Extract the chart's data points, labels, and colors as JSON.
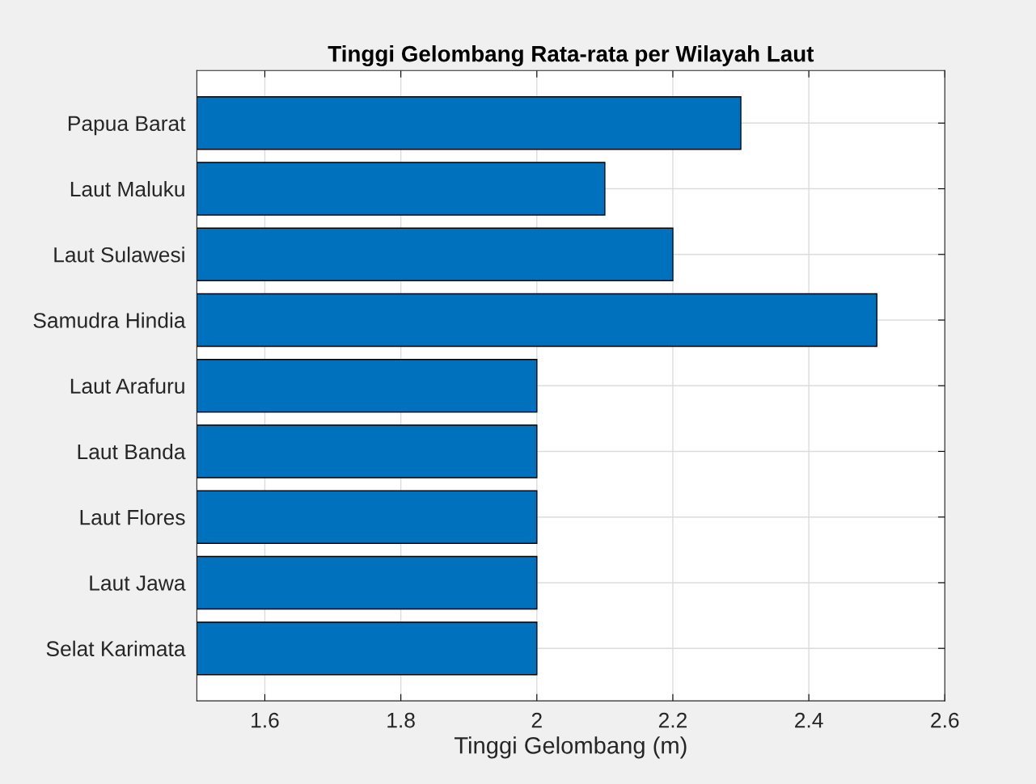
{
  "chart_data": {
    "type": "bar",
    "orientation": "horizontal",
    "title": "Tinggi Gelombang Rata-rata per Wilayah Laut",
    "xlabel": "Tinggi Gelombang (m)",
    "categories": [
      "Papua Barat",
      "Laut Maluku",
      "Laut Sulawesi",
      "Samudra Hindia",
      "Laut Arafuru",
      "Laut Banda",
      "Laut Flores",
      "Laut Jawa",
      "Selat Karimata"
    ],
    "values": [
      2.3,
      2.1,
      2.2,
      2.5,
      2.0,
      2.0,
      2.0,
      2.0,
      2.0
    ],
    "color": "#0072bd",
    "xlim": [
      1.5,
      2.6
    ],
    "xticks": [
      1.6,
      1.8,
      2,
      2.2,
      2.4,
      2.6
    ],
    "grid": true
  }
}
